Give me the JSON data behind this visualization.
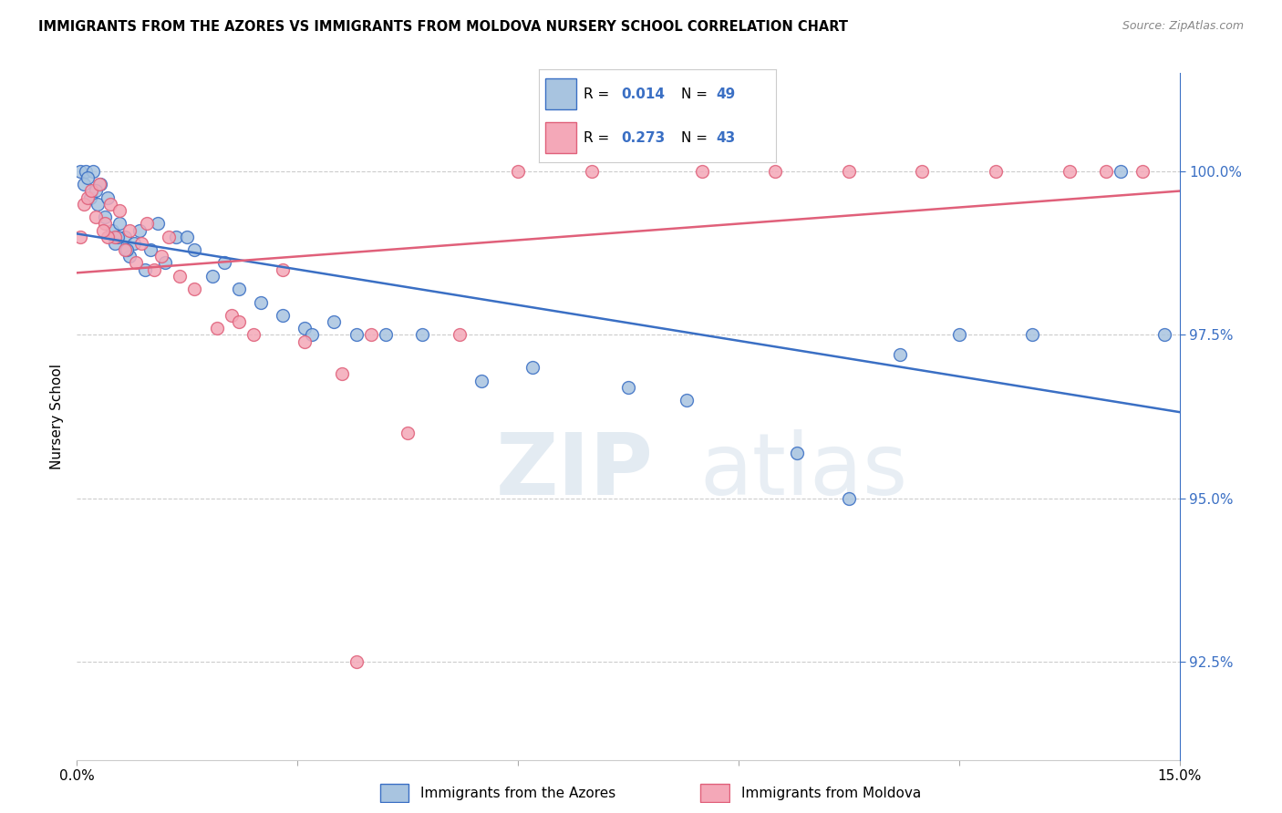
{
  "title": "IMMIGRANTS FROM THE AZORES VS IMMIGRANTS FROM MOLDOVA NURSERY SCHOOL CORRELATION CHART",
  "source": "Source: ZipAtlas.com",
  "ylabel": "Nursery School",
  "xlim": [
    0.0,
    15.0
  ],
  "ylim": [
    91.0,
    101.5
  ],
  "yticks": [
    92.5,
    95.0,
    97.5,
    100.0
  ],
  "ytick_labels": [
    "92.5%",
    "95.0%",
    "97.5%",
    "100.0%"
  ],
  "azores_color": "#a8c4e0",
  "moldova_color": "#f4a8b8",
  "line_azores_color": "#3a6fc4",
  "line_moldova_color": "#e0607a",
  "background_color": "#ffffff",
  "azores_x": [
    0.05,
    0.1,
    0.12,
    0.18,
    0.22,
    0.28,
    0.32,
    0.38,
    0.42,
    0.48,
    0.52,
    0.58,
    0.65,
    0.72,
    0.78,
    0.85,
    0.92,
    1.0,
    1.1,
    1.2,
    1.35,
    1.6,
    1.85,
    2.0,
    2.2,
    2.5,
    2.8,
    3.1,
    3.5,
    3.8,
    4.2,
    4.7,
    5.5,
    6.2,
    7.5,
    8.3,
    9.8,
    10.5,
    11.2,
    12.0,
    13.0,
    14.2,
    14.8,
    0.15,
    0.25,
    0.55,
    0.68,
    1.5,
    3.2
  ],
  "azores_y": [
    100.0,
    99.8,
    100.0,
    99.6,
    100.0,
    99.5,
    99.8,
    99.3,
    99.6,
    99.1,
    98.9,
    99.2,
    99.0,
    98.7,
    98.9,
    99.1,
    98.5,
    98.8,
    99.2,
    98.6,
    99.0,
    98.8,
    98.4,
    98.6,
    98.2,
    98.0,
    97.8,
    97.6,
    97.7,
    97.5,
    97.5,
    97.5,
    96.8,
    97.0,
    96.7,
    96.5,
    95.7,
    95.0,
    97.2,
    97.5,
    97.5,
    100.0,
    97.5,
    99.9,
    99.7,
    99.0,
    98.8,
    99.0,
    97.5
  ],
  "moldova_x": [
    0.05,
    0.1,
    0.15,
    0.2,
    0.25,
    0.3,
    0.38,
    0.45,
    0.52,
    0.58,
    0.65,
    0.72,
    0.8,
    0.88,
    0.95,
    1.05,
    1.15,
    1.25,
    1.4,
    1.6,
    1.9,
    2.1,
    2.4,
    2.8,
    3.1,
    3.6,
    4.0,
    4.5,
    5.2,
    6.0,
    7.0,
    8.5,
    9.5,
    10.5,
    11.5,
    12.5,
    13.5,
    14.0,
    14.5,
    3.8,
    0.42,
    2.2,
    0.35
  ],
  "moldova_y": [
    99.0,
    99.5,
    99.6,
    99.7,
    99.3,
    99.8,
    99.2,
    99.5,
    99.0,
    99.4,
    98.8,
    99.1,
    98.6,
    98.9,
    99.2,
    98.5,
    98.7,
    99.0,
    98.4,
    98.2,
    97.6,
    97.8,
    97.5,
    98.5,
    97.4,
    96.9,
    97.5,
    96.0,
    97.5,
    100.0,
    100.0,
    100.0,
    100.0,
    100.0,
    100.0,
    100.0,
    100.0,
    100.0,
    100.0,
    92.5,
    99.0,
    97.7,
    99.1
  ]
}
